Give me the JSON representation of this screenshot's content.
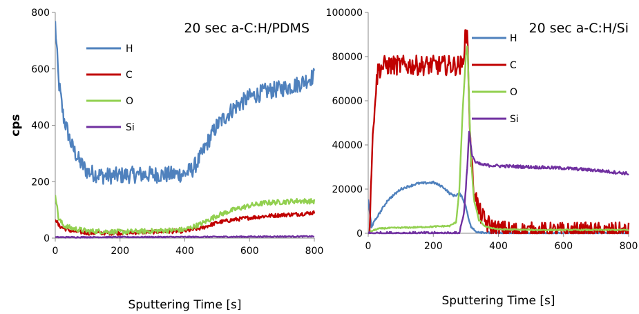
{
  "chart_data": [
    {
      "type": "line",
      "title": "20 sec a-C:H/PDMS",
      "xlabel": "Sputtering Time [s]",
      "ylabel": "cps",
      "xlim": [
        0,
        800
      ],
      "ylim": [
        0,
        800
      ],
      "xticks": [
        "0",
        "200",
        "400",
        "600",
        "800"
      ],
      "yticks": [
        "0",
        "200",
        "400",
        "600",
        "800"
      ],
      "grid": false,
      "legend_placement": "upper-left-center",
      "series": [
        {
          "name": "H",
          "color": "#4F81BD",
          "x": [
            0,
            10,
            25,
            50,
            75,
            100,
            150,
            200,
            250,
            300,
            350,
            400,
            425,
            450,
            475,
            500,
            550,
            600,
            650,
            700,
            750,
            800
          ],
          "y": [
            760,
            560,
            430,
            330,
            270,
            235,
            220,
            222,
            225,
            225,
            225,
            228,
            245,
            290,
            350,
            400,
            460,
            500,
            520,
            530,
            545,
            575
          ],
          "noise": 30
        },
        {
          "name": "C",
          "color": "#C00000",
          "x": [
            0,
            10,
            25,
            50,
            100,
            200,
            300,
            400,
            450,
            500,
            550,
            600,
            650,
            700,
            750,
            800
          ],
          "y": [
            70,
            45,
            35,
            25,
            18,
            18,
            22,
            25,
            35,
            55,
            65,
            72,
            78,
            82,
            85,
            90
          ],
          "noise": 7
        },
        {
          "name": "O",
          "color": "#92D050",
          "x": [
            0,
            10,
            25,
            50,
            100,
            200,
            300,
            400,
            450,
            500,
            550,
            600,
            650,
            700,
            750,
            800
          ],
          "y": [
            160,
            70,
            45,
            35,
            25,
            22,
            25,
            30,
            50,
            80,
            100,
            115,
            125,
            128,
            132,
            130
          ],
          "noise": 9
        },
        {
          "name": "Si",
          "color": "#7030A0",
          "x": [
            0,
            400,
            800
          ],
          "y": [
            3,
            4,
            6
          ],
          "noise": 2
        }
      ]
    },
    {
      "type": "line",
      "title": "20 sec a-C:H/Si",
      "xlabel": "Sputtering Time [s]",
      "ylabel": "",
      "xlim": [
        0,
        800
      ],
      "ylim": [
        0,
        100000
      ],
      "xticks": [
        "0",
        "200",
        "400",
        "600",
        "800"
      ],
      "yticks": [
        "0",
        "20000",
        "40000",
        "60000",
        "80000",
        "100000"
      ],
      "grid": false,
      "legend_placement": "top-center",
      "series": [
        {
          "name": "H",
          "color": "#4F81BD",
          "x": [
            0,
            10,
            30,
            60,
            100,
            150,
            200,
            230,
            250,
            265,
            280,
            290,
            300,
            315,
            330,
            360,
            400,
            800
          ],
          "y": [
            15000,
            3000,
            8000,
            15000,
            20000,
            22500,
            23000,
            21000,
            18000,
            17000,
            18000,
            16000,
            12000,
            3000,
            800,
            300,
            0,
            0
          ],
          "noise": 500
        },
        {
          "name": "C",
          "color": "#C00000",
          "x": [
            0,
            5,
            10,
            20,
            30,
            50,
            100,
            150,
            200,
            250,
            290,
            298,
            305,
            310,
            315,
            325,
            340,
            360,
            380,
            400,
            450,
            500,
            800
          ],
          "y": [
            0,
            5000,
            30000,
            60000,
            74000,
            76000,
            76000,
            76000,
            76000,
            76000,
            76000,
            90000,
            90000,
            60000,
            35000,
            20000,
            10000,
            5000,
            2500,
            1500,
            800,
            600,
            500
          ],
          "noise": 4500
        },
        {
          "name": "O",
          "color": "#92D050",
          "x": [
            0,
            10,
            30,
            50,
            100,
            150,
            200,
            250,
            270,
            280,
            290,
            300,
            305,
            310,
            315,
            325,
            340,
            360,
            400,
            500,
            800
          ],
          "y": [
            0,
            1000,
            2000,
            2300,
            2500,
            2700,
            3000,
            3300,
            5000,
            20000,
            55000,
            80000,
            86000,
            60000,
            35000,
            15000,
            6000,
            3000,
            1800,
            1500,
            1500
          ],
          "noise": 300
        },
        {
          "name": "Si",
          "color": "#7030A0",
          "x": [
            0,
            280,
            295,
            305,
            310,
            318,
            330,
            350,
            400,
            500,
            600,
            700,
            800
          ],
          "y": [
            0,
            0,
            10000,
            32000,
            46000,
            36000,
            32000,
            31000,
            30500,
            30000,
            29500,
            28500,
            27000
          ],
          "noise": 700
        }
      ]
    }
  ]
}
